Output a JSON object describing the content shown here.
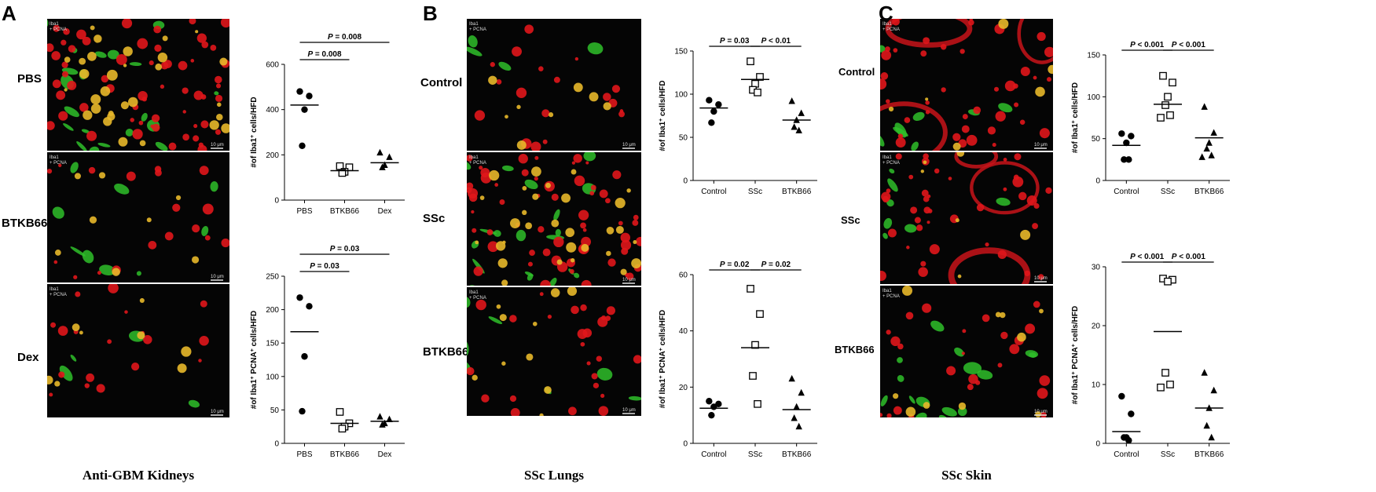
{
  "panels": [
    {
      "letter": "A",
      "caption": "Anti-GBM Kidneys",
      "rows": [
        "PBS",
        "BTKB66",
        "Dex"
      ]
    },
    {
      "letter": "B",
      "caption": "SSc Lungs",
      "rows": [
        "Control",
        "SSc",
        "BTKB66"
      ]
    },
    {
      "letter": "C",
      "caption": "SSc Skin",
      "rows": [
        "Control",
        "SSc",
        "BTKB66"
      ]
    }
  ],
  "micrograph_overlay": {
    "channel_labels": [
      "Iba1",
      "+ PCNA"
    ],
    "scale_label": "10 μm"
  },
  "chart_data": [
    {
      "id": "A-top",
      "type": "scatter",
      "categories": [
        "PBS",
        "BTKB66",
        "Dex"
      ],
      "ylabel_parts": [
        "#of Iba1",
        "+",
        " cells/HFD"
      ],
      "ylim": [
        0,
        600
      ],
      "yticks": [
        0,
        200,
        400,
        600
      ],
      "markers": [
        "circle",
        "square-open",
        "triangle"
      ],
      "points": [
        [
          480,
          460,
          400,
          240
        ],
        [
          150,
          145,
          125,
          120
        ],
        [
          210,
          190,
          155,
          145
        ]
      ],
      "means": [
        420,
        130,
        165
      ],
      "brackets": [
        {
          "from": 0,
          "to": 1,
          "label_p": "P",
          "label_rest": " = 0.008",
          "level": 1
        },
        {
          "from": 0,
          "to": 2,
          "label_p": "P",
          "label_rest": " = 0.008",
          "level": 2
        }
      ]
    },
    {
      "id": "A-bottom",
      "type": "scatter",
      "categories": [
        "PBS",
        "BTKB66",
        "Dex"
      ],
      "ylabel_parts": [
        "#of Iba1",
        "+",
        " PCNA",
        "+",
        " cells/HFD"
      ],
      "ylim": [
        0,
        250
      ],
      "yticks": [
        0,
        50,
        100,
        150,
        200,
        250
      ],
      "markers": [
        "circle",
        "square-open",
        "triangle"
      ],
      "points": [
        [
          218,
          205,
          130,
          48
        ],
        [
          47,
          30,
          25,
          22
        ],
        [
          40,
          36,
          30,
          28
        ]
      ],
      "means": [
        167,
        30,
        33
      ],
      "brackets": [
        {
          "from": 0,
          "to": 1,
          "label_p": "P",
          "label_rest": " = 0.03",
          "level": 1
        },
        {
          "from": 0,
          "to": 2,
          "label_p": "P",
          "label_rest": " = 0.03",
          "level": 2
        }
      ]
    },
    {
      "id": "B-top",
      "type": "scatter",
      "categories": [
        "Control",
        "SSc",
        "BTKB66"
      ],
      "ylabel_parts": [
        "#of Iba1",
        "+",
        " cells/HFD"
      ],
      "ylim": [
        0,
        150
      ],
      "yticks": [
        0,
        50,
        100,
        150
      ],
      "markers": [
        "circle",
        "square-open",
        "triangle"
      ],
      "points": [
        [
          93,
          88,
          80,
          67
        ],
        [
          138,
          120,
          112,
          105,
          102
        ],
        [
          92,
          78,
          70,
          62,
          58
        ]
      ],
      "means": [
        84,
        117,
        70
      ],
      "brackets": [
        {
          "from": 0,
          "to": 1,
          "label_p": "P",
          "label_rest": " = 0.03",
          "level": 1
        },
        {
          "from": 1,
          "to": 2,
          "label_p": "P",
          "label_rest": " < 0.01",
          "level": 1
        }
      ]
    },
    {
      "id": "B-bottom",
      "type": "scatter",
      "categories": [
        "Control",
        "SSc",
        "BTKB66"
      ],
      "ylabel_parts": [
        "#of Iba1",
        "+",
        " PCNA",
        "+",
        " cells/HFD"
      ],
      "ylim": [
        0,
        60
      ],
      "yticks": [
        0,
        20,
        40,
        60
      ],
      "markers": [
        "circle",
        "square-open",
        "triangle"
      ],
      "points": [
        [
          15,
          14,
          13,
          10
        ],
        [
          55,
          46,
          35,
          24,
          14
        ],
        [
          23,
          18,
          13,
          9,
          6
        ]
      ],
      "means": [
        12.5,
        34,
        12
      ],
      "brackets": [
        {
          "from": 0,
          "to": 1,
          "label_p": "P",
          "label_rest": " = 0.02",
          "level": 1
        },
        {
          "from": 1,
          "to": 2,
          "label_p": "P",
          "label_rest": " = 0.02",
          "level": 1
        }
      ]
    },
    {
      "id": "C-top",
      "type": "scatter",
      "categories": [
        "Control",
        "SSc",
        "BTKB66"
      ],
      "ylabel_parts": [
        "#of Iba1",
        "+",
        " cells/HFD"
      ],
      "ylim": [
        0,
        150
      ],
      "yticks": [
        0,
        50,
        100,
        150
      ],
      "markers": [
        "circle",
        "square-open",
        "triangle"
      ],
      "points": [
        [
          56,
          53,
          45,
          25,
          25
        ],
        [
          125,
          117,
          100,
          90,
          78,
          75
        ],
        [
          88,
          57,
          45,
          38,
          30,
          28
        ]
      ],
      "means": [
        42,
        91,
        51
      ],
      "brackets": [
        {
          "from": 0,
          "to": 1,
          "label_p": "P",
          "label_rest": " < 0.001",
          "level": 1
        },
        {
          "from": 1,
          "to": 2,
          "label_p": "P",
          "label_rest": " < 0.001",
          "level": 1
        }
      ]
    },
    {
      "id": "C-bottom",
      "type": "scatter",
      "categories": [
        "Control",
        "SSc",
        "BTKB66"
      ],
      "ylabel_parts": [
        "#of Iba1",
        "+",
        " PCNA",
        "+",
        " cells/HFD"
      ],
      "ylim": [
        0,
        30
      ],
      "yticks": [
        0,
        10,
        20,
        30
      ],
      "markers": [
        "circle",
        "square-open",
        "triangle"
      ],
      "points": [
        [
          8,
          5,
          1,
          1,
          0.5
        ],
        [
          28,
          27.8,
          27.5,
          12,
          10,
          9.5
        ],
        [
          12,
          9,
          6,
          3,
          1
        ]
      ],
      "means": [
        2,
        19,
        6
      ],
      "brackets": [
        {
          "from": 0,
          "to": 1,
          "label_p": "P",
          "label_rest": " < 0.001",
          "level": 1
        },
        {
          "from": 1,
          "to": 2,
          "label_p": "P",
          "label_rest": " < 0.001",
          "level": 1
        }
      ]
    }
  ]
}
